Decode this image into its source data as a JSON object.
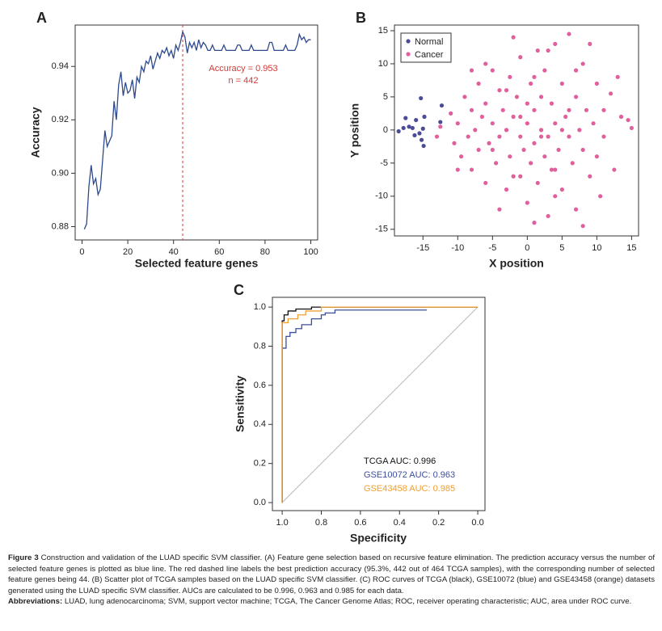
{
  "chart_data": [
    {
      "type": "line",
      "panel": "A",
      "xlabel": "Selected feature genes",
      "ylabel": "Accuracy",
      "xlim": [
        -3,
        103
      ],
      "ylim": [
        0.875,
        0.9555
      ],
      "xticks": [
        0,
        20,
        40,
        60,
        80,
        100
      ],
      "yticks": [
        0.88,
        {
          "value": 0.9,
          "label": "0.90"
        },
        0.92,
        0.94
      ],
      "x": [
        1,
        2,
        3,
        4,
        5,
        6,
        7,
        8,
        9,
        10,
        11,
        12,
        13,
        14,
        15,
        16,
        17,
        18,
        19,
        20,
        21,
        22,
        23,
        24,
        25,
        26,
        27,
        28,
        29,
        30,
        31,
        32,
        33,
        34,
        35,
        36,
        37,
        38,
        39,
        40,
        41,
        42,
        43,
        44,
        45,
        46,
        47,
        48,
        49,
        50,
        51,
        52,
        53,
        54,
        55,
        56,
        57,
        58,
        59,
        60,
        61,
        62,
        63,
        64,
        65,
        66,
        67,
        68,
        69,
        70,
        71,
        72,
        73,
        74,
        75,
        76,
        77,
        78,
        79,
        80,
        81,
        82,
        83,
        84,
        85,
        86,
        87,
        88,
        89,
        90,
        91,
        92,
        93,
        94,
        95,
        96,
        97,
        98,
        99,
        100
      ],
      "series": [
        {
          "name": "Accuracy",
          "color": "#2e4a8c",
          "values": [
            0.879,
            0.881,
            0.895,
            0.903,
            0.896,
            0.898,
            0.892,
            0.894,
            0.905,
            0.916,
            0.91,
            0.912,
            0.914,
            0.927,
            0.92,
            0.933,
            0.938,
            0.929,
            0.934,
            0.93,
            0.931,
            0.935,
            0.928,
            0.936,
            0.934,
            0.94,
            0.938,
            0.942,
            0.941,
            0.944,
            0.939,
            0.942,
            0.945,
            0.943,
            0.946,
            0.945,
            0.947,
            0.944,
            0.946,
            0.943,
            0.948,
            0.946,
            0.949,
            0.953,
            0.951,
            0.945,
            0.949,
            0.947,
            0.949,
            0.946,
            0.95,
            0.947,
            0.949,
            0.948,
            0.946,
            0.946,
            0.948,
            0.946,
            0.946,
            0.946,
            0.946,
            0.948,
            0.946,
            0.946,
            0.946,
            0.946,
            0.946,
            0.948,
            0.948,
            0.946,
            0.946,
            0.946,
            0.946,
            0.948,
            0.946,
            0.946,
            0.946,
            0.946,
            0.946,
            0.946,
            0.946,
            0.949,
            0.949,
            0.946,
            0.946,
            0.946,
            0.946,
            0.946,
            0.948,
            0.946,
            0.946,
            0.946,
            0.946,
            0.948,
            0.952,
            0.95,
            0.951,
            0.949,
            0.95,
            0.95
          ]
        }
      ],
      "annotation": {
        "x": 44,
        "color": "#d03a3a",
        "text": [
          "Accuracy = 0.953",
          "n = 442"
        ]
      }
    },
    {
      "type": "scatter",
      "panel": "B",
      "xlabel": "X position",
      "ylabel": "Y position",
      "xlim": [
        -19.1,
        16
      ],
      "ylim": [
        -16,
        15.85
      ],
      "xticks": [
        -15,
        -10,
        -5,
        0,
        5,
        10,
        15
      ],
      "yticks": [
        -15,
        -10,
        -5,
        0,
        5,
        10,
        15
      ],
      "legend": "upper left",
      "series": [
        {
          "name": "Normal",
          "color": "#4b4b96",
          "x": [
            -18.5,
            -17.8,
            -17.5,
            -17,
            -16.5,
            -16.2,
            -16,
            -15.5,
            -15.2,
            -15,
            -14.8,
            -15.3,
            -14.9,
            -12.3,
            -12.5
          ],
          "values": [
            -0.2,
            0.3,
            1.8,
            0.5,
            0.3,
            -0.8,
            1.5,
            -0.5,
            -1.5,
            0.2,
            2,
            4.8,
            -2.4,
            3.7,
            1.2
          ]
        },
        {
          "name": "Cancer",
          "color": "#e0609e",
          "x": [
            -13,
            -12.5,
            -11,
            -10.5,
            -10,
            -9.5,
            -9,
            -8.5,
            -8,
            -8,
            -7.5,
            -7,
            -7,
            -6.5,
            -6,
            -6,
            -5.5,
            -5,
            -5,
            -4.5,
            -4,
            -4,
            -3.5,
            -3,
            -3,
            -2.5,
            -2.5,
            -2,
            -2,
            -1.5,
            -1,
            -1,
            -0.5,
            0,
            0,
            0.5,
            0.5,
            1,
            1,
            1.5,
            1.5,
            2,
            2,
            2.5,
            2.5,
            3,
            3,
            3.5,
            3.5,
            4,
            4,
            4.5,
            5,
            5,
            5.5,
            6,
            6,
            6.5,
            7,
            7,
            7.5,
            8,
            8,
            8.5,
            9,
            9,
            9.5,
            10,
            10,
            10.5,
            11,
            11,
            12,
            12.5,
            13,
            13.5,
            14.5,
            15,
            -2,
            3,
            -6,
            1,
            4,
            -4,
            8,
            -8,
            -10,
            0,
            2,
            -1,
            5,
            -3,
            6,
            -5,
            4,
            1,
            -1,
            7
          ],
          "values": [
            -1,
            0.5,
            2.5,
            -2,
            1,
            -4,
            5,
            -1,
            3,
            -6,
            0,
            7,
            -3,
            2,
            -8,
            4,
            -2,
            9,
            1,
            -5,
            6,
            -1,
            3,
            -9,
            0,
            8,
            -4,
            2,
            -7,
            5,
            -1,
            11,
            -3,
            1,
            -11,
            7,
            -5,
            3,
            -2,
            12,
            -8,
            0,
            5,
            -4,
            9,
            -1,
            -13,
            4,
            -6,
            1,
            13,
            -3,
            7,
            -9,
            2,
            -1,
            14.5,
            -5,
            5,
            -12,
            0,
            10,
            -3,
            3,
            -7,
            13,
            1,
            -4,
            7,
            -10,
            3,
            -1,
            5.5,
            -6,
            8,
            2,
            1.5,
            0.3,
            14,
            12,
            10,
            -14,
            -10,
            -12,
            -14.5,
            9,
            -6,
            4,
            -1,
            2,
            0,
            6,
            3,
            -3,
            -6,
            8,
            -7,
            9
          ]
        }
      ]
    },
    {
      "type": "line",
      "panel": "C",
      "xlabel": "Specificity",
      "ylabel": "Sensitivity",
      "xlim": [
        1.05,
        -0.037
      ],
      "ylim": [
        -0.041,
        1.05
      ],
      "diagonal": true,
      "legend": "lower right",
      "xticks": [
        {
          "value": 1,
          "label": "1.0"
        },
        0.8,
        0.6,
        0.4,
        0.2,
        {
          "value": 0,
          "label": "0.0"
        }
      ],
      "yticks": [
        {
          "value": 0,
          "label": "0.0"
        },
        0.2,
        0.4,
        0.6,
        0.8,
        {
          "value": 1,
          "label": "1.0"
        }
      ],
      "series": [
        {
          "name": "TCGA AUC: 0.996",
          "color": "#111111",
          "x": [
            1,
            1,
            0.99,
            0.99,
            0.97,
            0.97,
            0.93,
            0.93,
            0.85,
            0.85,
            0
          ],
          "values": [
            0,
            0.93,
            0.93,
            0.96,
            0.96,
            0.98,
            0.98,
            0.99,
            0.99,
            1,
            1
          ]
        },
        {
          "name": "GSE10072 AUC: 0.963",
          "color": "#3b4f9c",
          "x": [
            1,
            1,
            0.98,
            0.98,
            0.96,
            0.96,
            0.93,
            0.93,
            0.9,
            0.9,
            0.85,
            0.85,
            0.8,
            0.8,
            0.78,
            0.78,
            0.73,
            0.73,
            0.26
          ],
          "values": [
            0,
            0.79,
            0.79,
            0.85,
            0.85,
            0.87,
            0.87,
            0.89,
            0.89,
            0.91,
            0.91,
            0.94,
            0.94,
            0.96,
            0.96,
            0.97,
            0.97,
            0.985,
            0.985
          ]
        },
        {
          "name": "GSE43458 AUC: 0.985",
          "color": "#f0a030",
          "x": [
            1,
            1,
            0.97,
            0.97,
            0.92,
            0.92,
            0.88,
            0.88,
            0.8,
            0.8,
            0
          ],
          "values": [
            0,
            0.92,
            0.92,
            0.94,
            0.94,
            0.96,
            0.96,
            0.98,
            0.98,
            1,
            1
          ]
        }
      ]
    }
  ],
  "caption": {
    "label": "Figure 3",
    "text": "Construction and validation of the LUAD specific SVM classifier. (A) Feature gene selection based on recursive feature elimination. The prediction accuracy versus the number of selected feature genes is plotted as blue line. The red dashed line labels the best prediction accuracy (95.3%, 442 out of 464 TCGA samples), with the corresponding number of selected feature genes being 44. (B) Scatter plot of TCGA samples based on the LUAD specific SVM classifier. (C) ROC curves of TCGA (black), GSE10072 (blue) and GSE43458 (orange) datasets generated using the LUAD specific SVM classifier. AUCs are calculated to be 0.996, 0.963 and 0.985 for each data.",
    "abbreviations_label": "Abbreviations:",
    "abbreviations": "LUAD, lung adenocarcinoma; SVM, support vector machine; TCGA, The Cancer Genome Atlas; ROC, receiver operating characteristic; AUC, area under ROC curve."
  }
}
